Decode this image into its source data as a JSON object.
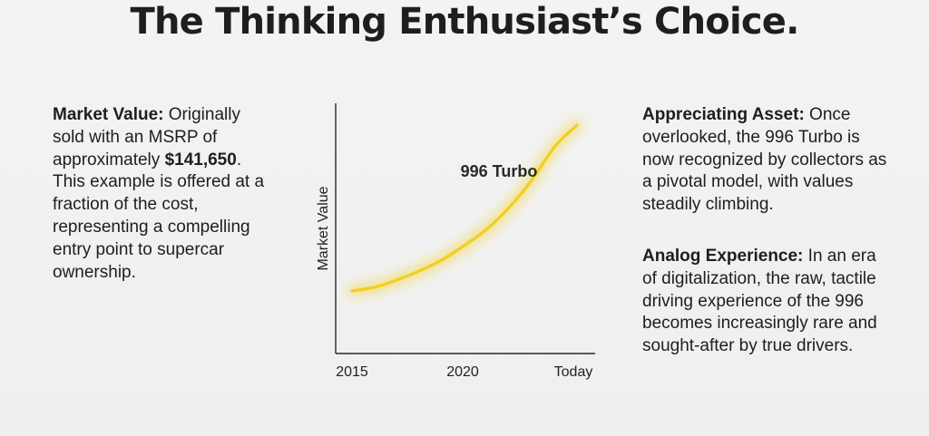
{
  "title": "The Thinking Enthusiast’s Choice.",
  "left_block": {
    "heading": "Market Value:",
    "text_before": " Originally sold with an MSRP of approximately ",
    "price": "$141,650",
    "text_after": ". This example is offered at a fraction of the cost, representing a compelling entry point to supercar ownership."
  },
  "right_blocks": [
    {
      "heading": "Appreciating Asset:",
      "text": " Once overlooked, the 996 Turbo is now recognized by collectors as a pivotal model, with values steadily climbing."
    },
    {
      "heading": "Analog Experience:",
      "text": " In an era of digitalization, the raw, tactile driving experience of the 996 becomes increasingly rare and sought-after by true drivers."
    }
  ],
  "chart_data": {
    "type": "line",
    "x_tick_labels": [
      "2015",
      "2020",
      "Today"
    ],
    "xlabel": "",
    "ylabel": "Market Value",
    "series": [
      {
        "name": "996 Turbo",
        "color": "#f2cf1d",
        "x": [
          0,
          0.1,
          0.2,
          0.3,
          0.4,
          0.5,
          0.6,
          0.7,
          0.8,
          0.9,
          1.0
        ],
        "values": [
          0.09,
          0.11,
          0.15,
          0.2,
          0.26,
          0.34,
          0.43,
          0.55,
          0.7,
          0.88,
          1.0
        ]
      }
    ],
    "grid": false,
    "y_ticks": false
  }
}
